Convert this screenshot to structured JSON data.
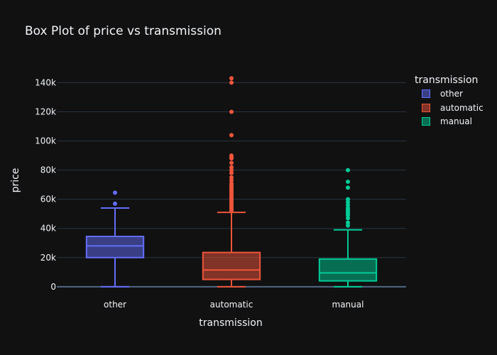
{
  "chart_data": {
    "type": "box",
    "title": "Box Plot of price vs transmission",
    "xlabel": "transmission",
    "ylabel": "price",
    "categories": [
      "other",
      "automatic",
      "manual"
    ],
    "ylim": [
      -3000,
      148000
    ],
    "yticks": [
      0,
      20000,
      40000,
      60000,
      80000,
      100000,
      120000,
      140000
    ],
    "ytick_labels": [
      "0",
      "20k",
      "40k",
      "60k",
      "80k",
      "100k",
      "120k",
      "140k"
    ],
    "grid": true,
    "legend_title": "transmission",
    "legend_position": "top-right",
    "series": [
      {
        "name": "other",
        "color": "#636efa",
        "min": 0,
        "q1": 20000,
        "median": 28000,
        "q3": 34500,
        "max": 54000,
        "outliers": [
          57000,
          64500
        ]
      },
      {
        "name": "automatic",
        "color": "#ef553b",
        "min": 0,
        "q1": 5000,
        "median": 11500,
        "q3": 23500,
        "max": 51000,
        "outliers": [
          52000,
          53000,
          54000,
          55000,
          56000,
          57000,
          58000,
          59000,
          60000,
          61000,
          62000,
          63000,
          64000,
          65000,
          66000,
          67000,
          68000,
          69000,
          70000,
          71000,
          73000,
          75000,
          78000,
          80000,
          82000,
          85000,
          88000,
          89000,
          90000,
          104000,
          120000,
          140000,
          143000
        ]
      },
      {
        "name": "manual",
        "color": "#00cc96",
        "min": 0,
        "q1": 4000,
        "median": 9500,
        "q3": 19000,
        "max": 39000,
        "outliers": [
          42000,
          44000,
          47000,
          49000,
          50000,
          51000,
          52000,
          53000,
          54000,
          56000,
          58000,
          60000,
          68000,
          72000,
          80000
        ]
      }
    ]
  }
}
